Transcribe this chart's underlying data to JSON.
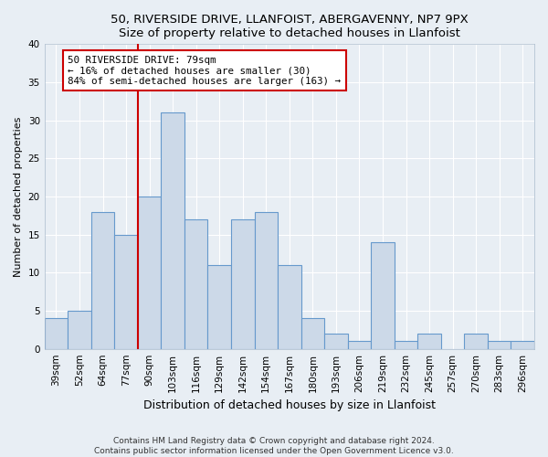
{
  "title1": "50, RIVERSIDE DRIVE, LLANFOIST, ABERGAVENNY, NP7 9PX",
  "title2": "Size of property relative to detached houses in Llanfoist",
  "xlabel": "Distribution of detached houses by size in Llanfoist",
  "ylabel": "Number of detached properties",
  "bar_labels": [
    "39sqm",
    "52sqm",
    "64sqm",
    "77sqm",
    "90sqm",
    "103sqm",
    "116sqm",
    "129sqm",
    "142sqm",
    "154sqm",
    "167sqm",
    "180sqm",
    "193sqm",
    "206sqm",
    "219sqm",
    "232sqm",
    "245sqm",
    "257sqm",
    "270sqm",
    "283sqm",
    "296sqm"
  ],
  "bar_values": [
    4,
    5,
    18,
    15,
    20,
    31,
    17,
    11,
    17,
    18,
    11,
    4,
    2,
    1,
    14,
    1,
    2,
    0,
    2,
    1,
    1
  ],
  "bar_color": "#ccd9e8",
  "bar_edge_color": "#6699cc",
  "property_line_label": "50 RIVERSIDE DRIVE: 79sqm",
  "annotation_line1": "← 16% of detached houses are smaller (30)",
  "annotation_line2": "84% of semi-detached houses are larger (163) →",
  "vline_color": "#cc0000",
  "vline_x": 3.5,
  "ylim": [
    0,
    40
  ],
  "yticks": [
    0,
    5,
    10,
    15,
    20,
    25,
    30,
    35,
    40
  ],
  "footer_line1": "Contains HM Land Registry data © Crown copyright and database right 2024.",
  "footer_line2": "Contains public sector information licensed under the Open Government Licence v3.0.",
  "bg_color": "#e8eef4",
  "plot_bg_color": "#e8eef4",
  "grid_color": "#ffffff",
  "title_fontsize": 9.5,
  "subtitle_fontsize": 8.5,
  "tick_fontsize": 7.5,
  "ylabel_fontsize": 8,
  "xlabel_fontsize": 9
}
